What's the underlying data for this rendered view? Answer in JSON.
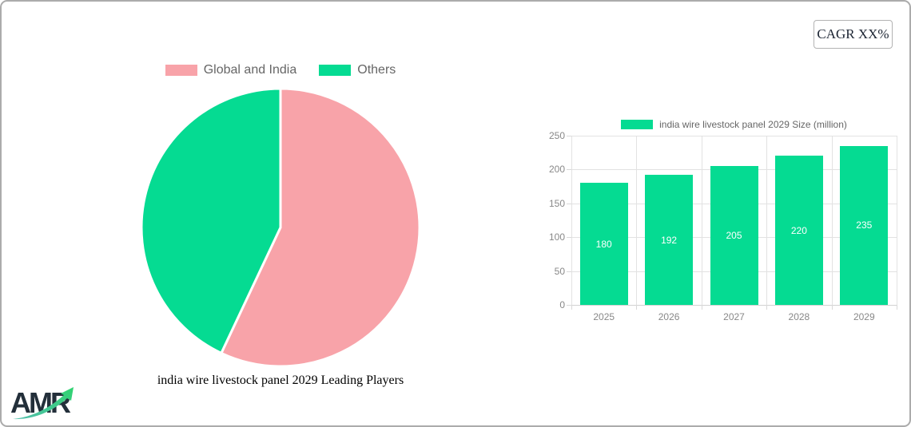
{
  "page": {
    "background": "#ffffff",
    "border_color": "#ababab"
  },
  "cagr_badge": {
    "label": "CAGR XX%"
  },
  "logo": {
    "text": "AMR",
    "arrow_colors": [
      "#53bfae",
      "#2fd36f"
    ],
    "text_color": "#232f3a"
  },
  "pie_section": {
    "title": "india wire livestock panel 2029 Leading Players",
    "legend": [
      {
        "label": "Global and India",
        "color": "#f8a3a9"
      },
      {
        "label": "Others",
        "color": "#05db92"
      }
    ]
  },
  "bar_section": {
    "legend_label": "india wire livestock panel 2029 Size (million)",
    "legend_color": "#05db92"
  },
  "chart_data": [
    {
      "type": "pie",
      "title": "india wire livestock panel 2029 Leading Players",
      "labels": [
        "Global and India",
        "Others"
      ],
      "values": [
        57,
        43
      ],
      "colors": [
        "#f8a3a9",
        "#05db92"
      ],
      "start_angle": "top",
      "direction": "clockwise",
      "slice_border_color": "#ffffff",
      "legend_position": "top"
    },
    {
      "type": "bar",
      "title": "india wire livestock panel 2029 Size (million)",
      "categories": [
        "2025",
        "2026",
        "2027",
        "2028",
        "2029"
      ],
      "values": [
        180,
        192,
        205,
        220,
        235
      ],
      "bar_color": "#05db92",
      "value_label_color": "#ffffff",
      "xlabel": "",
      "ylabel": "",
      "ylim": [
        0,
        250
      ],
      "y_ticks": [
        0,
        50,
        100,
        150,
        200,
        250
      ],
      "grid": true,
      "legend_position": "top",
      "tick_color": "#888888"
    }
  ]
}
